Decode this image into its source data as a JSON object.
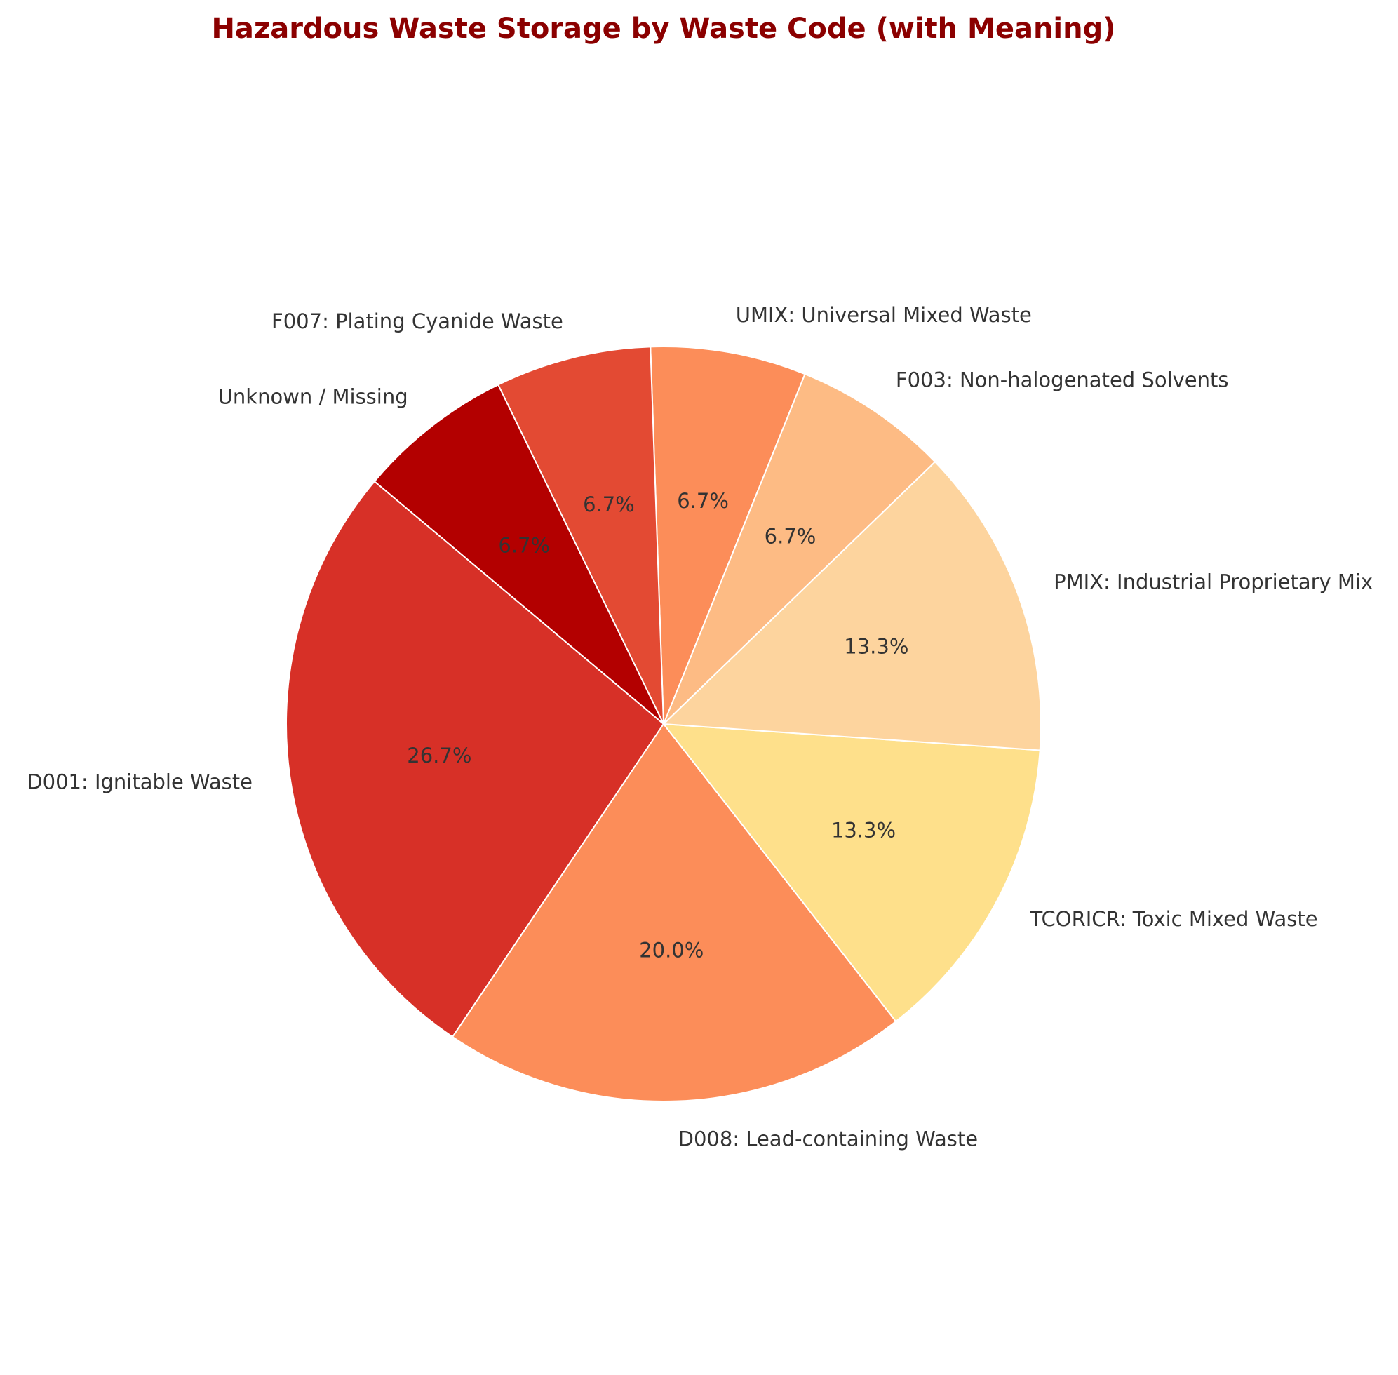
{
  "chart_data": {
    "type": "pie",
    "title": "Hazardous Waste Storage by Waste Code (with Meaning)",
    "title_color": "#8b0000",
    "start_angle_deg": 140,
    "direction": "counterclockwise",
    "slices": [
      {
        "label": "D001: Ignitable Waste",
        "value": 4,
        "percent_label": "26.7%",
        "color": "#d73027"
      },
      {
        "label": "D008: Lead-containing Waste",
        "value": 3,
        "percent_label": "20.0%",
        "color": "#fc8d59"
      },
      {
        "label": "TCORICR: Toxic Mixed Waste",
        "value": 2,
        "percent_label": "13.3%",
        "color": "#fee08b"
      },
      {
        "label": "PMIX: Industrial Proprietary Mix",
        "value": 2,
        "percent_label": "13.3%",
        "color": "#fdd49e"
      },
      {
        "label": "F003: Non-halogenated Solvents",
        "value": 1,
        "percent_label": "6.7%",
        "color": "#fdbb84"
      },
      {
        "label": "UMIX: Universal Mixed Waste",
        "value": 1,
        "percent_label": "6.7%",
        "color": "#fc8d59"
      },
      {
        "label": "F007: Plating Cyanide Waste",
        "value": 1,
        "percent_label": "6.7%",
        "color": "#e34a33"
      },
      {
        "label": "Unknown / Missing",
        "value": 1,
        "percent_label": "6.7%",
        "color": "#b30000"
      }
    ]
  }
}
